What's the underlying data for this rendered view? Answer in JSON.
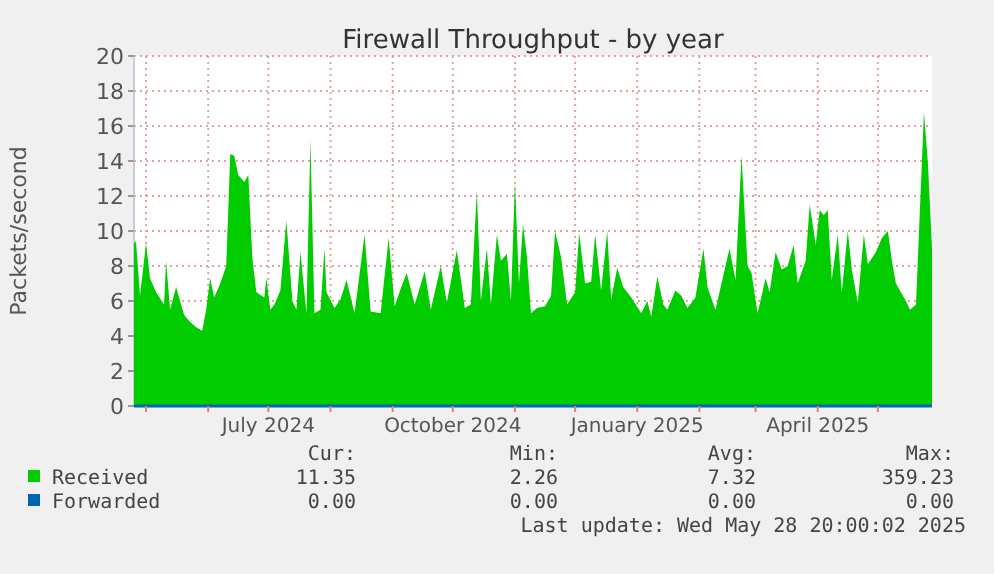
{
  "chart_data": {
    "type": "area",
    "title": "Firewall Throughput - by year",
    "ylabel": "Packets/second",
    "xlim": [
      "2024-04-25",
      "2025-05-28"
    ],
    "xticks": [
      {
        "value": "2024-05-01",
        "label": null
      },
      {
        "value": "2024-06-01",
        "label": null
      },
      {
        "value": "2024-07-01",
        "label": "July 2024"
      },
      {
        "value": "2024-08-01",
        "label": null
      },
      {
        "value": "2024-09-01",
        "label": null
      },
      {
        "value": "2024-10-01",
        "label": "October 2024"
      },
      {
        "value": "2024-11-01",
        "label": null
      },
      {
        "value": "2024-12-01",
        "label": null
      },
      {
        "value": "2025-01-01",
        "label": "January 2025"
      },
      {
        "value": "2025-02-01",
        "label": null
      },
      {
        "value": "2025-03-01",
        "label": null
      },
      {
        "value": "2025-04-01",
        "label": "April 2025"
      },
      {
        "value": "2025-05-01",
        "label": null
      }
    ],
    "ylim": [
      0,
      20
    ],
    "yticks": [
      0,
      2,
      4,
      6,
      8,
      10,
      12,
      14,
      16,
      18,
      20
    ],
    "grid": true,
    "legend": "bottom",
    "x": [
      "2024-04-25",
      "2024-04-26",
      "2024-04-28",
      "2024-05-01",
      "2024-05-03",
      "2024-05-06",
      "2024-05-10",
      "2024-05-11",
      "2024-05-13",
      "2024-05-16",
      "2024-05-20",
      "2024-05-23",
      "2024-05-26",
      "2024-05-29",
      "2024-05-31",
      "2024-06-02",
      "2024-06-04",
      "2024-06-07",
      "2024-06-10",
      "2024-06-12",
      "2024-06-14",
      "2024-06-16",
      "2024-06-19",
      "2024-06-21",
      "2024-06-23",
      "2024-06-25",
      "2024-06-29",
      "2024-06-30",
      "2024-07-02",
      "2024-07-04",
      "2024-07-07",
      "2024-07-10",
      "2024-07-13",
      "2024-07-15",
      "2024-07-17",
      "2024-07-20",
      "2024-07-22",
      "2024-07-24",
      "2024-07-27",
      "2024-07-29",
      "2024-07-30",
      "2024-08-03",
      "2024-08-06",
      "2024-08-09",
      "2024-08-13",
      "2024-08-18",
      "2024-08-21",
      "2024-08-26",
      "2024-08-30",
      "2024-09-02",
      "2024-09-05",
      "2024-09-08",
      "2024-09-12",
      "2024-09-17",
      "2024-09-20",
      "2024-09-25",
      "2024-09-28",
      "2024-10-03",
      "2024-10-07",
      "2024-10-10",
      "2024-10-13",
      "2024-10-15",
      "2024-10-18",
      "2024-10-20",
      "2024-10-23",
      "2024-10-25",
      "2024-10-28",
      "2024-10-30",
      "2024-11-01",
      "2024-11-03",
      "2024-11-05",
      "2024-11-07",
      "2024-11-09",
      "2024-11-12",
      "2024-11-16",
      "2024-11-19",
      "2024-11-21",
      "2024-11-24",
      "2024-11-27",
      "2024-12-01",
      "2024-12-03",
      "2024-12-06",
      "2024-12-09",
      "2024-12-11",
      "2024-12-14",
      "2024-12-17",
      "2024-12-19",
      "2024-12-22",
      "2024-12-25",
      "2024-12-29",
      "2025-01-03",
      "2025-01-06",
      "2025-01-08",
      "2025-01-11",
      "2025-01-14",
      "2025-01-16",
      "2025-01-20",
      "2025-01-23",
      "2025-01-26",
      "2025-01-30",
      "2025-02-03",
      "2025-02-05",
      "2025-02-09",
      "2025-02-12",
      "2025-02-16",
      "2025-02-19",
      "2025-02-22",
      "2025-02-25",
      "2025-02-27",
      "2025-03-02",
      "2025-03-06",
      "2025-03-08",
      "2025-03-11",
      "2025-03-14",
      "2025-03-17",
      "2025-03-20",
      "2025-03-22",
      "2025-03-26",
      "2025-03-28",
      "2025-03-31",
      "2025-04-02",
      "2025-04-04",
      "2025-04-06",
      "2025-04-08",
      "2025-04-11",
      "2025-04-13",
      "2025-04-16",
      "2025-04-18",
      "2025-04-21",
      "2025-04-24",
      "2025-04-26",
      "2025-04-30",
      "2025-05-03",
      "2025-05-06",
      "2025-05-08",
      "2025-05-10",
      "2025-05-15",
      "2025-05-17",
      "2025-05-20",
      "2025-05-24",
      "2025-05-26",
      "2025-05-28"
    ],
    "series": [
      {
        "name": "Received",
        "color": "#00cc00",
        "values": [
          9.3,
          9.4,
          6.3,
          9.3,
          7.3,
          6.5,
          5.8,
          8.3,
          5.5,
          6.8,
          5.2,
          4.8,
          4.5,
          4.3,
          5.5,
          7.3,
          6.2,
          7.0,
          8.0,
          14.4,
          14.3,
          13.2,
          12.8,
          13.2,
          8.5,
          6.5,
          6.2,
          7.3,
          5.5,
          5.8,
          6.6,
          10.6,
          6.0,
          5.5,
          8.8,
          5.3,
          15.2,
          5.3,
          5.5,
          9.0,
          6.5,
          5.6,
          6.1,
          7.2,
          5.3,
          9.8,
          5.4,
          5.3,
          9.6,
          5.7,
          6.7,
          7.6,
          5.8,
          7.7,
          5.5,
          8.0,
          5.9,
          8.9,
          5.6,
          5.8,
          12.3,
          6.0,
          9.0,
          5.8,
          9.8,
          8.3,
          8.7,
          6.0,
          12.8,
          7.0,
          10.4,
          8.5,
          5.3,
          5.6,
          5.7,
          6.3,
          10.0,
          8.5,
          5.8,
          6.5,
          9.9,
          7.0,
          7.1,
          9.8,
          6.6,
          10.0,
          6.1,
          7.9,
          6.8,
          6.2,
          5.3,
          6.0,
          5.1,
          7.4,
          5.8,
          5.5,
          6.6,
          6.3,
          5.6,
          6.2,
          9.0,
          6.8,
          5.5,
          7.0,
          9.0,
          7.2,
          14.3,
          8.0,
          7.6,
          5.3,
          7.3,
          6.5,
          8.8,
          7.8,
          8.0,
          9.2,
          7.0,
          8.3,
          11.5,
          9.2,
          11.2,
          10.9,
          11.2,
          7.2,
          9.8,
          6.5,
          10.0,
          7.8,
          5.9,
          9.8,
          8.1,
          8.8,
          9.6,
          10.0,
          8.3,
          7.0,
          6.0,
          5.5,
          5.8,
          16.8,
          13.8,
          9.0
        ]
      },
      {
        "name": "Forwarded",
        "color": "#0066b3",
        "type": "line",
        "x": [
          "2024-04-25",
          "2025-05-28"
        ],
        "values": [
          0,
          0
        ]
      }
    ],
    "annotations": [
      "Cur:",
      "Min:",
      "Avg:",
      "Max:",
      "11.35",
      "2.26",
      "7.32",
      "359.23",
      "0.00",
      "0.00",
      "0.00",
      "0.00",
      "Last update: Wed May 28 20:00:02 2025"
    ]
  }
}
